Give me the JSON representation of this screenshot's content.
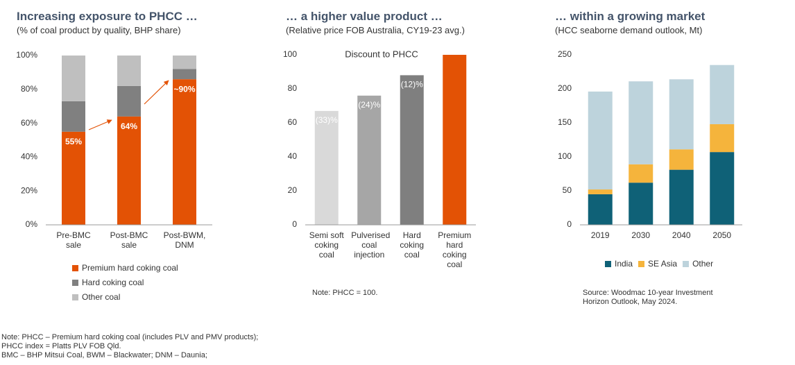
{
  "chart_data": [
    {
      "type": "bar",
      "stacked": true,
      "title": "Increasing exposure to PHCC …",
      "subtitle": "(% of coal product by quality, BHP share)",
      "categories": [
        "Pre-BMC sale",
        "Post-BMC sale",
        "Post-BWM, DNM"
      ],
      "series": [
        {
          "name": "Premium hard coking coal",
          "color": "#e35205",
          "values": [
            55,
            64,
            86
          ],
          "value_labels": [
            "55%",
            "64%",
            "~90%"
          ]
        },
        {
          "name": "Hard coking coal",
          "color": "#808080",
          "values": [
            18,
            18,
            6
          ]
        },
        {
          "name": "Other coal",
          "color": "#bfbfbf",
          "values": [
            27,
            18,
            8
          ]
        }
      ],
      "ylim": [
        0,
        100
      ],
      "yticks": [
        {
          "value": 0,
          "label": "0%"
        },
        {
          "value": 20,
          "label": "20%"
        },
        {
          "value": 40,
          "label": "40%"
        },
        {
          "value": 60,
          "label": "60%"
        },
        {
          "value": 80,
          "label": "80%"
        },
        {
          "value": 100,
          "label": "100%"
        }
      ],
      "grid": false,
      "legend": "bottom"
    },
    {
      "type": "bar",
      "stacked": false,
      "title": "… a higher value product …",
      "subtitle": "(Relative price FOB Australia, CY19-23 avg.)",
      "annotation": "Discount to PHCC",
      "categories": [
        "Semi soft coking coal",
        "Pulverised coal injection",
        "Hard coking coal",
        "Premium hard coking coal"
      ],
      "values": [
        67,
        76,
        88,
        100
      ],
      "value_labels": [
        "(33)%",
        "(24)%",
        "(12)%",
        null
      ],
      "colors": [
        "#d9d9d9",
        "#a6a6a6",
        "#7f7f7f",
        "#e35205"
      ],
      "ylim": [
        0,
        100
      ],
      "yticks": [
        0,
        20,
        40,
        60,
        80,
        100
      ],
      "grid": false,
      "note": "Note: PHCC = 100."
    },
    {
      "type": "bar",
      "stacked": true,
      "title": "… within a growing market",
      "subtitle": "(HCC seaborne demand outlook, Mt)",
      "categories": [
        "2019",
        "2030",
        "2040",
        "2050"
      ],
      "series": [
        {
          "name": "India",
          "color": "#0f6177",
          "values": [
            45,
            62,
            81,
            107
          ]
        },
        {
          "name": "SE Asia",
          "color": "#f5b43c",
          "values": [
            7,
            27,
            30,
            41
          ]
        },
        {
          "name": "Other",
          "color": "#bdd3dc",
          "values": [
            144,
            122,
            103,
            87
          ]
        }
      ],
      "ylim": [
        0,
        250
      ],
      "yticks": [
        0,
        50,
        100,
        150,
        200,
        250
      ],
      "grid": false,
      "legend": "bottom",
      "note": "Source: Woodmac 10-year Investment Horizon Outlook, May 2024."
    }
  ],
  "footer": [
    "Note: PHCC – Premium hard coking coal (includes PLV and PMV products);",
    "PHCC index = Platts PLV FOB Qld.",
    "BMC – BHP Mitsui Coal, BWM – Blackwater; DNM – Daunia;"
  ]
}
